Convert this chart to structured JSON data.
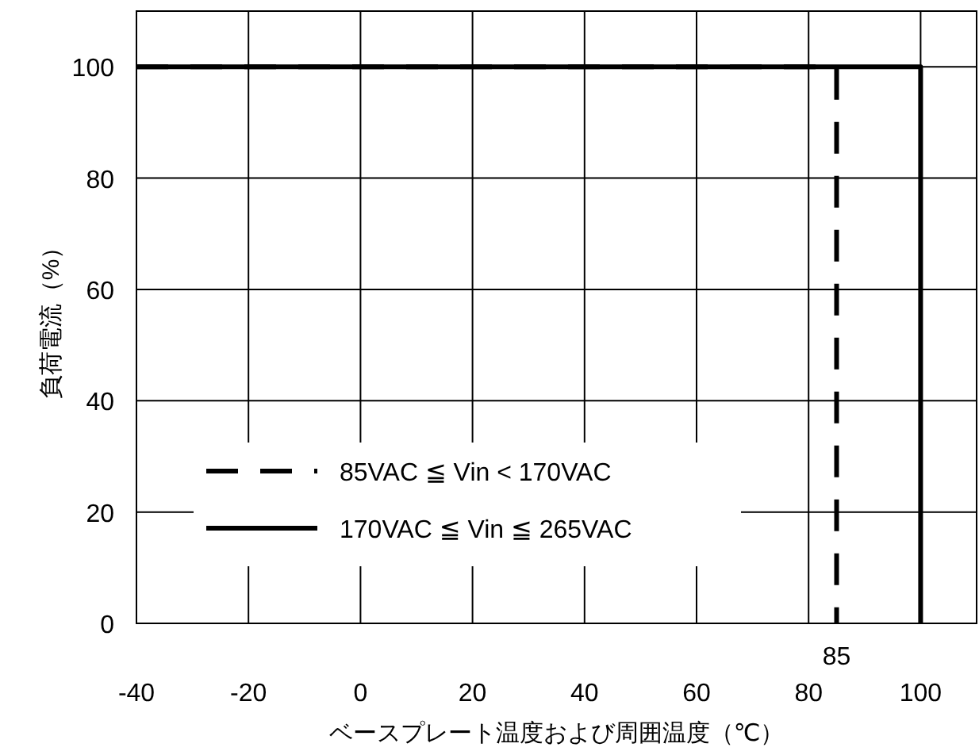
{
  "chart_data": {
    "type": "line",
    "xlabel": "ベースプレート温度および周囲温度（℃）",
    "ylabel": "負荷電流（%）",
    "xlim": [
      -40,
      110
    ],
    "ylim": [
      0,
      110
    ],
    "xticks": [
      -40,
      -20,
      0,
      20,
      40,
      60,
      80,
      100
    ],
    "yticks": [
      0,
      20,
      40,
      60,
      80,
      100
    ],
    "grid": true,
    "legend": "bottom left",
    "series": [
      {
        "name": "85VAC ≦ Vin < 170VAC",
        "color": "#000000",
        "line_style": "dashed",
        "x": [
          -40,
          85,
          85
        ],
        "values": [
          100,
          100,
          0
        ]
      },
      {
        "name": "170VAC ≦ Vin ≦ 265VAC",
        "color": "#000000",
        "line_style": "solid",
        "x": [
          -40,
          100,
          100
        ],
        "values": [
          100,
          100,
          0
        ]
      }
    ],
    "annotations": [
      {
        "text": "85",
        "x": 85,
        "y": 0
      }
    ]
  }
}
